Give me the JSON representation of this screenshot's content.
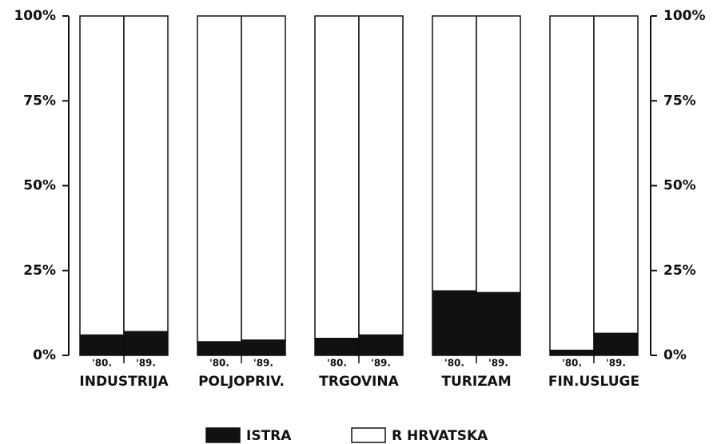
{
  "chart_data": {
    "type": "stacked_bar",
    "groups": [
      "INDUSTRIJA",
      "POLJOPRIV.",
      "TRGOVINA",
      "TURIZAM",
      "FIN.USLUGE"
    ],
    "categories": [
      "'80.",
      "'89.",
      "'80.",
      "'89.",
      "'80.",
      "'89.",
      "'80.",
      "'89.",
      "'80.",
      "'89."
    ],
    "series": [
      {
        "name": "ISTRA",
        "color": "#111111",
        "values": [
          6,
          7,
          4,
          4.5,
          5,
          6,
          19,
          18.5,
          1.5,
          6.5
        ]
      },
      {
        "name": "R HRVATSKA",
        "color": "#ffffff",
        "values": [
          94,
          93,
          96,
          95.5,
          95,
          94,
          81,
          81.5,
          98.5,
          93.5
        ]
      }
    ],
    "ylim": [
      0,
      100
    ],
    "yticks": [
      {
        "value": 0,
        "label": "0%"
      },
      {
        "value": 25,
        "label": "25%"
      },
      {
        "value": 50,
        "label": "50%"
      },
      {
        "value": 75,
        "label": "75%"
      },
      {
        "value": 100,
        "label": "100%"
      }
    ],
    "y2lim": [
      0,
      100
    ],
    "y2ticks": [
      {
        "value": 0,
        "label": "0%"
      },
      {
        "value": 25,
        "label": "25%"
      },
      {
        "value": 50,
        "label": "50%"
      },
      {
        "value": 75,
        "label": "75%"
      },
      {
        "value": 100,
        "label": "100%"
      }
    ],
    "legend": "bottom"
  }
}
